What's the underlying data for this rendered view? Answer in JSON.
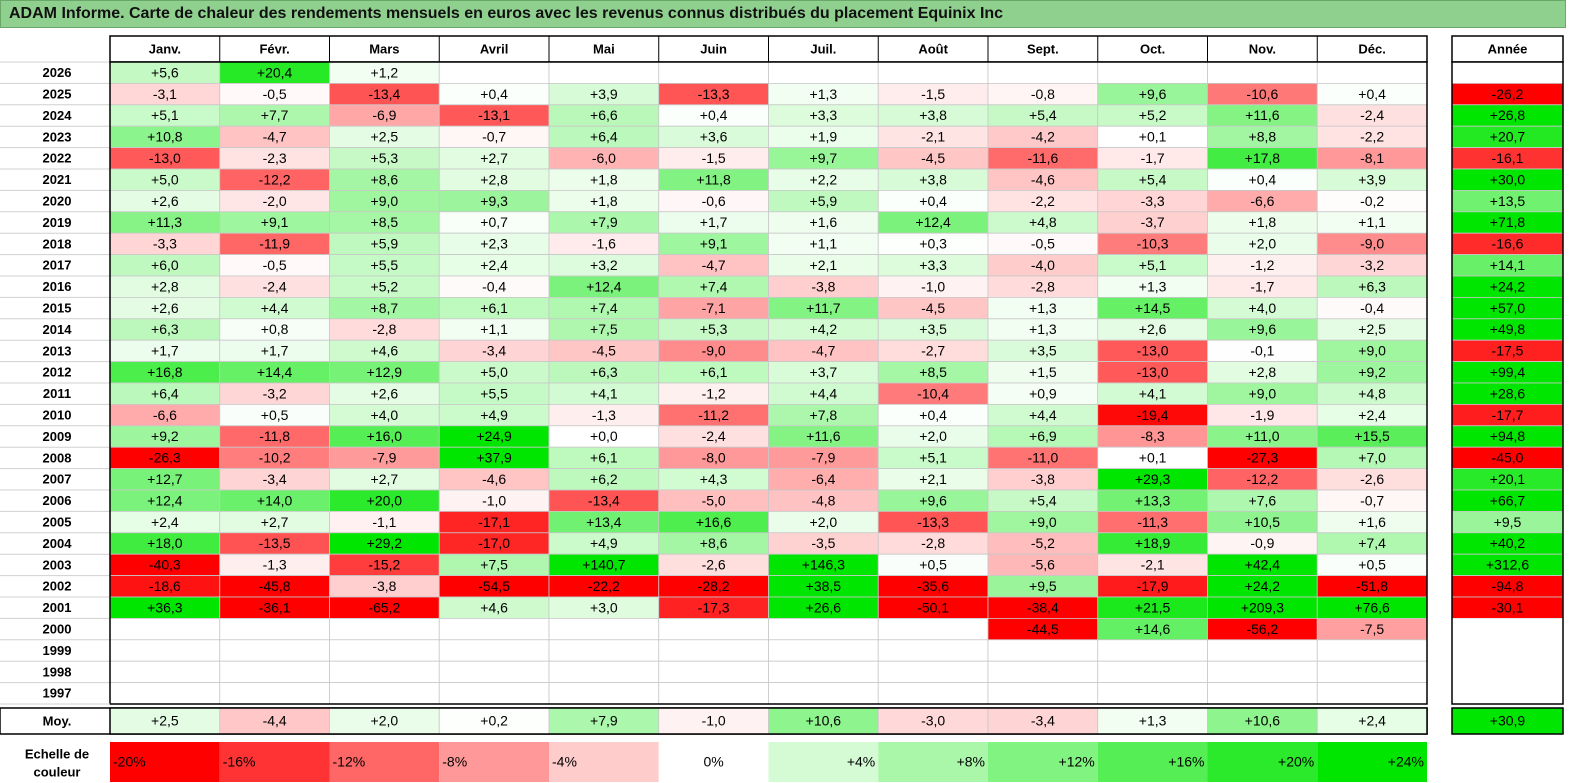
{
  "title": "ADAM Informe. Carte de chaleur des rendements mensuels en euros avec les revenus connus distribués du placement Equinix Inc",
  "chart_data": {
    "type": "heatmap",
    "months": [
      "Janv.",
      "Févr.",
      "Mars",
      "Avril",
      "Mai",
      "Juin",
      "Juil.",
      "Août",
      "Sept.",
      "Oct.",
      "Nov.",
      "Déc."
    ],
    "year_header": "Année",
    "rows": [
      {
        "year": "2026",
        "values": [
          "+5,6",
          "+20,4",
          "+1,2",
          "",
          "",
          "",
          "",
          "",
          "",
          "",
          "",
          ""
        ],
        "annual": ""
      },
      {
        "year": "2025",
        "values": [
          "-3,1",
          "-0,5",
          "-13,4",
          "+0,4",
          "+3,9",
          "-13,3",
          "+1,3",
          "-1,5",
          "-0,8",
          "+9,6",
          "-10,6",
          "+0,4"
        ],
        "annual": "-26,2"
      },
      {
        "year": "2024",
        "values": [
          "+5,1",
          "+7,7",
          "-6,9",
          "-13,1",
          "+6,6",
          "+0,4",
          "+3,3",
          "+3,8",
          "+5,4",
          "+5,2",
          "+11,6",
          "-2,4"
        ],
        "annual": "+26,8"
      },
      {
        "year": "2023",
        "values": [
          "+10,8",
          "-4,7",
          "+2,5",
          "-0,7",
          "+6,4",
          "+3,6",
          "+1,9",
          "-2,1",
          "-4,2",
          "+0,1",
          "+8,8",
          "-2,2"
        ],
        "annual": "+20,7"
      },
      {
        "year": "2022",
        "values": [
          "-13,0",
          "-2,3",
          "+5,3",
          "+2,7",
          "-6,0",
          "-1,5",
          "+9,7",
          "-4,5",
          "-11,6",
          "-1,7",
          "+17,8",
          "-8,1"
        ],
        "annual": "-16,1"
      },
      {
        "year": "2021",
        "values": [
          "+5,0",
          "-12,2",
          "+8,6",
          "+2,8",
          "+1,8",
          "+11,8",
          "+2,2",
          "+3,8",
          "-4,6",
          "+5,4",
          "+0,4",
          "+3,9"
        ],
        "annual": "+30,0"
      },
      {
        "year": "2020",
        "values": [
          "+2,6",
          "-2,0",
          "+9,0",
          "+9,3",
          "+1,8",
          "-0,6",
          "+5,9",
          "+0,4",
          "-2,2",
          "-3,3",
          "-6,6",
          "-0,2"
        ],
        "annual": "+13,5"
      },
      {
        "year": "2019",
        "values": [
          "+11,3",
          "+9,1",
          "+8,5",
          "+0,7",
          "+7,9",
          "+1,7",
          "+1,6",
          "+12,4",
          "+4,8",
          "-3,7",
          "+1,8",
          "+1,1"
        ],
        "annual": "+71,8"
      },
      {
        "year": "2018",
        "values": [
          "-3,3",
          "-11,9",
          "+5,9",
          "+2,3",
          "-1,6",
          "+9,1",
          "+1,1",
          "+0,3",
          "-0,5",
          "-10,3",
          "+2,0",
          "-9,0"
        ],
        "annual": "-16,6"
      },
      {
        "year": "2017",
        "values": [
          "+6,0",
          "-0,5",
          "+5,5",
          "+2,4",
          "+3,2",
          "-4,7",
          "+2,1",
          "+3,3",
          "-4,0",
          "+5,1",
          "-1,2",
          "-3,2"
        ],
        "annual": "+14,1"
      },
      {
        "year": "2016",
        "values": [
          "+2,8",
          "-2,4",
          "+5,2",
          "-0,4",
          "+12,4",
          "+7,4",
          "-3,8",
          "-1,0",
          "-2,8",
          "+1,3",
          "-1,7",
          "+6,3"
        ],
        "annual": "+24,2"
      },
      {
        "year": "2015",
        "values": [
          "+2,6",
          "+4,4",
          "+8,7",
          "+6,1",
          "+7,4",
          "-7,1",
          "+11,7",
          "-4,5",
          "+1,3",
          "+14,5",
          "+4,0",
          "-0,4"
        ],
        "annual": "+57,0"
      },
      {
        "year": "2014",
        "values": [
          "+6,3",
          "+0,8",
          "-2,8",
          "+1,1",
          "+7,5",
          "+5,3",
          "+4,2",
          "+3,5",
          "+1,3",
          "+2,6",
          "+9,6",
          "+2,5"
        ],
        "annual": "+49,8"
      },
      {
        "year": "2013",
        "values": [
          "+1,7",
          "+1,7",
          "+4,6",
          "-3,4",
          "-4,5",
          "-9,0",
          "-4,7",
          "-2,7",
          "+3,5",
          "-13,0",
          "-0,1",
          "+9,0"
        ],
        "annual": "-17,5"
      },
      {
        "year": "2012",
        "values": [
          "+16,8",
          "+14,4",
          "+12,9",
          "+5,0",
          "+6,3",
          "+6,1",
          "+3,7",
          "+8,5",
          "+1,5",
          "-13,0",
          "+2,8",
          "+9,2"
        ],
        "annual": "+99,4"
      },
      {
        "year": "2011",
        "values": [
          "+6,4",
          "-3,2",
          "+2,6",
          "+5,5",
          "+4,1",
          "-1,2",
          "+4,4",
          "-10,4",
          "+0,9",
          "+4,1",
          "+9,0",
          "+4,8"
        ],
        "annual": "+28,6"
      },
      {
        "year": "2010",
        "values": [
          "-6,6",
          "+0,5",
          "+4,0",
          "+4,9",
          "-1,3",
          "-11,2",
          "+7,8",
          "+0,4",
          "+4,4",
          "-19,4",
          "-1,9",
          "+2,4"
        ],
        "annual": "-17,7"
      },
      {
        "year": "2009",
        "values": [
          "+9,2",
          "-11,8",
          "+16,0",
          "+24,9",
          "+0,0",
          "-2,4",
          "+11,6",
          "+2,0",
          "+6,9",
          "-8,3",
          "+11,0",
          "+15,5"
        ],
        "annual": "+94,8"
      },
      {
        "year": "2008",
        "values": [
          "-26,3",
          "-10,2",
          "-7,9",
          "+37,9",
          "+6,1",
          "-8,0",
          "-7,9",
          "+5,1",
          "-11,0",
          "+0,1",
          "-27,3",
          "+7,0"
        ],
        "annual": "-45,0"
      },
      {
        "year": "2007",
        "values": [
          "+12,7",
          "-3,4",
          "+2,7",
          "-4,6",
          "+6,2",
          "+4,3",
          "-6,4",
          "+2,1",
          "-3,8",
          "+29,3",
          "-12,2",
          "-2,6"
        ],
        "annual": "+20,1"
      },
      {
        "year": "2006",
        "values": [
          "+12,4",
          "+14,0",
          "+20,0",
          "-1,0",
          "-13,4",
          "-5,0",
          "-4,8",
          "+9,6",
          "+5,4",
          "+13,3",
          "+7,6",
          "-0,7"
        ],
        "annual": "+66,7"
      },
      {
        "year": "2005",
        "values": [
          "+2,4",
          "+2,7",
          "-1,1",
          "-17,1",
          "+13,4",
          "+16,6",
          "+2,0",
          "-13,3",
          "+9,0",
          "-11,3",
          "+10,5",
          "+1,6"
        ],
        "annual": "+9,5"
      },
      {
        "year": "2004",
        "values": [
          "+18,0",
          "-13,5",
          "+29,2",
          "-17,0",
          "+4,9",
          "+8,6",
          "-3,5",
          "-2,8",
          "-5,2",
          "+18,9",
          "-0,9",
          "+7,4"
        ],
        "annual": "+40,2"
      },
      {
        "year": "2003",
        "values": [
          "-40,3",
          "-1,3",
          "-15,2",
          "+7,5",
          "+140,7",
          "-2,6",
          "+146,3",
          "+0,5",
          "-5,6",
          "-2,1",
          "+42,4",
          "+0,5"
        ],
        "annual": "+312,6"
      },
      {
        "year": "2002",
        "values": [
          "-18,6",
          "-45,8",
          "-3,8",
          "-54,5",
          "-22,2",
          "-28,2",
          "+38,5",
          "-35,6",
          "+9,5",
          "-17,9",
          "+24,2",
          "-51,8"
        ],
        "annual": "-94,8"
      },
      {
        "year": "2001",
        "values": [
          "+36,3",
          "-36,1",
          "-65,2",
          "+4,6",
          "+3,0",
          "-17,3",
          "+26,6",
          "-50,1",
          "-38,4",
          "+21,5",
          "+209,3",
          "+76,6"
        ],
        "annual": "-30,1"
      },
      {
        "year": "2000",
        "values": [
          "",
          "",
          "",
          "",
          "",
          "",
          "",
          "",
          "-44,5",
          "+14,6",
          "-56,2",
          "-7,5"
        ],
        "annual": ""
      },
      {
        "year": "1999",
        "values": [
          "",
          "",
          "",
          "",
          "",
          "",
          "",
          "",
          "",
          "",
          "",
          ""
        ],
        "annual": ""
      },
      {
        "year": "1998",
        "values": [
          "",
          "",
          "",
          "",
          "",
          "",
          "",
          "",
          "",
          "",
          "",
          ""
        ],
        "annual": ""
      },
      {
        "year": "1997",
        "values": [
          "",
          "",
          "",
          "",
          "",
          "",
          "",
          "",
          "",
          "",
          "",
          ""
        ],
        "annual": ""
      }
    ],
    "average": {
      "label": "Moy.",
      "values": [
        "+2,5",
        "-4,4",
        "+2,0",
        "+0,2",
        "+7,9",
        "-1,0",
        "+10,6",
        "-3,0",
        "-3,4",
        "+1,3",
        "+10,6",
        "+2,4"
      ],
      "annual": "+30,9"
    },
    "scale": {
      "label_line1": "Echelle de",
      "label_line2": "couleur",
      "steps": [
        {
          "label": "-20%",
          "value": -20
        },
        {
          "label": "-16%",
          "value": -16
        },
        {
          "label": "-12%",
          "value": -12
        },
        {
          "label": "-8%",
          "value": -8
        },
        {
          "label": "-4%",
          "value": -4
        },
        {
          "label": "0%",
          "value": 0
        },
        {
          "label": "+4%",
          "value": 4
        },
        {
          "label": "+8%",
          "value": 8
        },
        {
          "label": "+12%",
          "value": 12
        },
        {
          "label": "+16%",
          "value": 16
        },
        {
          "label": "+20%",
          "value": 20
        },
        {
          "label": "+24%",
          "value": 24
        }
      ]
    },
    "colors": {
      "negative": "#ff0000",
      "neutral": "#ffffff",
      "positive": "#00e000",
      "title_bar": "#8fd08f"
    }
  }
}
